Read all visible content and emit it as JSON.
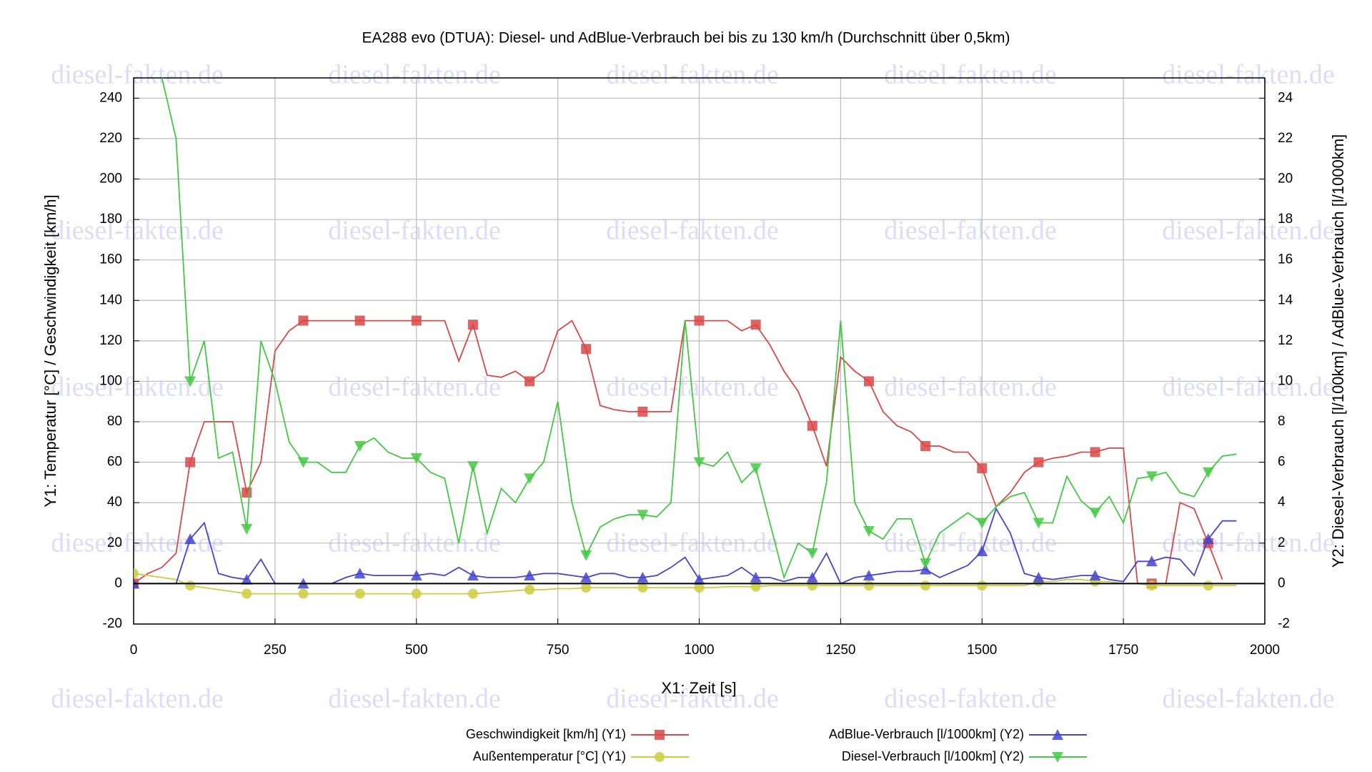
{
  "chart_data": {
    "type": "line",
    "title": "EA288 evo (DTUA): Diesel- und AdBlue-Verbrauch bei bis zu 130 km/h (Durchschnitt über 0,5km)",
    "xlabel": "X1: Zeit [s]",
    "ylabel": "Y1: Temperatur [°C] / Geschwindigkeit [km/h]",
    "y2label": "Y2: Diesel-Verbrauch [l/100km] / AdBlue-Verbrauch [l/1000km]",
    "watermark": "diesel-fakten.de",
    "grid": true,
    "legend": "bottom",
    "xlim": [
      0,
      2000
    ],
    "xticks": [
      0,
      250,
      500,
      750,
      1000,
      1250,
      1500,
      1750,
      2000
    ],
    "ylim": [
      -20,
      250
    ],
    "yticks": [
      -20,
      0,
      20,
      40,
      60,
      80,
      100,
      120,
      140,
      160,
      180,
      200,
      220,
      240
    ],
    "y2lim": [
      -2,
      25
    ],
    "y2ticks": [
      -2,
      0,
      2,
      4,
      6,
      8,
      10,
      12,
      14,
      16,
      18,
      20,
      22,
      24
    ],
    "x": [
      0,
      25,
      50,
      75,
      100,
      125,
      150,
      175,
      200,
      225,
      250,
      275,
      300,
      325,
      350,
      375,
      400,
      425,
      450,
      475,
      500,
      525,
      550,
      575,
      600,
      625,
      650,
      675,
      700,
      725,
      750,
      775,
      800,
      825,
      850,
      875,
      900,
      925,
      950,
      975,
      1000,
      1025,
      1050,
      1075,
      1100,
      1125,
      1150,
      1175,
      1200,
      1225,
      1250,
      1275,
      1300,
      1325,
      1350,
      1375,
      1400,
      1425,
      1450,
      1475,
      1500,
      1525,
      1550,
      1575,
      1600,
      1625,
      1650,
      1675,
      1700,
      1725,
      1750,
      1775,
      1800,
      1825,
      1850,
      1875,
      1900,
      1925,
      1950
    ],
    "series": [
      {
        "name": "Geschwindigkeit [km/h] (Y1)",
        "color": "#d94848",
        "marker": "square",
        "axis": "y",
        "values": [
          0,
          5,
          8,
          15,
          60,
          80,
          80,
          80,
          45,
          60,
          115,
          125,
          130,
          130,
          130,
          130,
          130,
          130,
          130,
          130,
          130,
          130,
          130,
          110,
          128,
          103,
          102,
          105,
          100,
          105,
          125,
          130,
          116,
          88,
          86,
          85,
          85,
          85,
          85,
          130,
          130,
          130,
          130,
          125,
          128,
          118,
          105,
          95,
          78,
          58,
          112,
          105,
          100,
          85,
          78,
          75,
          68,
          68,
          65,
          65,
          57,
          38,
          45,
          55,
          60,
          62,
          63,
          65,
          65,
          67,
          67,
          0,
          0,
          0,
          40,
          37,
          20,
          2,
          null
        ]
      },
      {
        "name": "Außentemperatur [°C] (Y1)",
        "color": "#cccc40",
        "marker": "circle",
        "axis": "y",
        "values": [
          5,
          4,
          3,
          2,
          -1,
          -2,
          -3,
          -4,
          -5,
          -5,
          -5,
          -5,
          -5,
          -5,
          -5,
          -5,
          -5,
          -5,
          -5,
          -5,
          -5,
          -5,
          -5,
          -5,
          -5,
          -4.5,
          -4,
          -3.5,
          -3,
          -3,
          -2.5,
          -2.5,
          -2,
          -2,
          -2,
          -2,
          -2,
          -2,
          -2,
          -2,
          -2,
          -2,
          -1.5,
          -1.5,
          -1.5,
          -1,
          -1,
          -1,
          -1,
          -1,
          -1,
          -1,
          -1,
          -1,
          -1,
          -1,
          -1,
          -1,
          -1,
          -1,
          -1,
          -1,
          -1,
          -1,
          1,
          1,
          2,
          2,
          1,
          1,
          0,
          0,
          -1,
          -1,
          -1,
          -1,
          -1,
          -1,
          -1
        ]
      },
      {
        "name": "AdBlue-Verbrauch [l/1000km] (Y2)",
        "color": "#4444d0",
        "marker": "triangle-up",
        "axis": "y2",
        "values": [
          0,
          0,
          0,
          0,
          2.2,
          3,
          0.5,
          0.3,
          0.2,
          1.2,
          0,
          0,
          0,
          0,
          0,
          0.3,
          0.5,
          0.4,
          0.4,
          0.4,
          0.4,
          0.5,
          0.4,
          0.8,
          0.4,
          0.3,
          0.3,
          0.3,
          0.4,
          0.5,
          0.5,
          0.4,
          0.3,
          0.5,
          0.5,
          0.3,
          0.3,
          0.4,
          0.8,
          1.3,
          0.2,
          0.3,
          0.4,
          0.8,
          0.3,
          0.3,
          0.1,
          0.3,
          0.3,
          1.5,
          0,
          0.3,
          0.4,
          0.5,
          0.6,
          0.6,
          0.7,
          0.3,
          0.6,
          0.9,
          1.6,
          3.7,
          2.5,
          0.5,
          0.3,
          0.2,
          0.3,
          0.4,
          0.4,
          0.2,
          0.1,
          1.1,
          1.1,
          1.3,
          1.2,
          0.4,
          2.2,
          3.1,
          3.1
        ]
      },
      {
        "name": "Diesel-Verbrauch [l/100km] (Y2)",
        "color": "#44c844",
        "marker": "triangle-down",
        "axis": "y2",
        "values": [
          null,
          null,
          25,
          22,
          10,
          12,
          6.2,
          6.5,
          2.7,
          12,
          10,
          7,
          6,
          6,
          5.5,
          5.5,
          6.8,
          7.2,
          6.5,
          6.2,
          6.2,
          5.5,
          5.2,
          2,
          5.8,
          2.5,
          4.7,
          4,
          5.2,
          6,
          9,
          4,
          1.4,
          2.8,
          3.2,
          3.4,
          3.4,
          3.3,
          4,
          13,
          6,
          5.8,
          6.5,
          5,
          5.7,
          3,
          0.3,
          2,
          1.5,
          5,
          13,
          4,
          2.6,
          2.2,
          3.2,
          3.2,
          1,
          2.5,
          3,
          3.5,
          3,
          3.8,
          4.3,
          4.5,
          3,
          3,
          5.3,
          4.1,
          3.5,
          4.3,
          3,
          5.2,
          5.3,
          5.5,
          4.5,
          4.3,
          5.5,
          6.3,
          6.4
        ]
      }
    ]
  }
}
